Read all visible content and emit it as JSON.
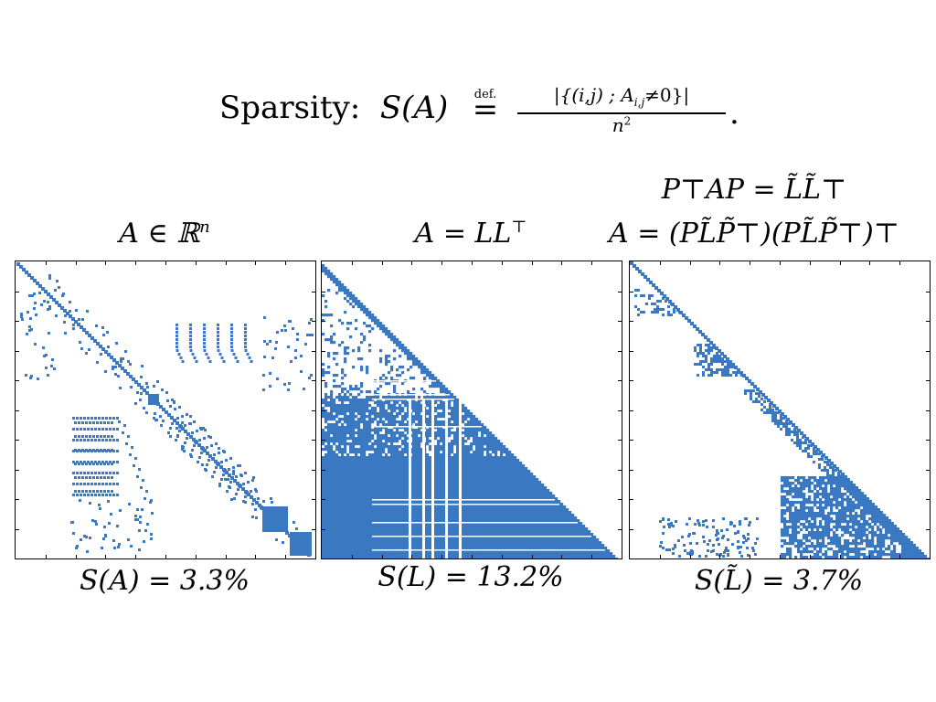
{
  "formula": {
    "label": "Sparsity:",
    "lhs": "S(A)",
    "def_marker": "def.",
    "equals": "=",
    "numerator": "|{(i,j) ; A",
    "numerator_sub": "i,j",
    "numerator_rest": "≠0}|",
    "denominator": "n",
    "denominator_sup": "2",
    "end": "."
  },
  "panels": [
    {
      "title_line1": "",
      "title_line2": "A ∈ ℝ",
      "title_line2_sup": "n",
      "stat": "S(A) = 3.3%",
      "pattern": "original"
    },
    {
      "title_line1": "",
      "title_line2": "A = LL",
      "title_line2_sup": "⊤",
      "stat": "S(L) = 13.2%",
      "pattern": "cholesky"
    },
    {
      "title_line1": "P⊤AP = L̃L̃⊤",
      "title_line2": "A = (PL̃P̃⊤)(PL̃P̃⊤)⊤",
      "title_line2_sup": "",
      "stat": "S(L̃) = 3.7%",
      "pattern": "permuted"
    }
  ],
  "colors": {
    "fill": "#3a78c2",
    "frame": "#000000",
    "background": "#ffffff"
  }
}
